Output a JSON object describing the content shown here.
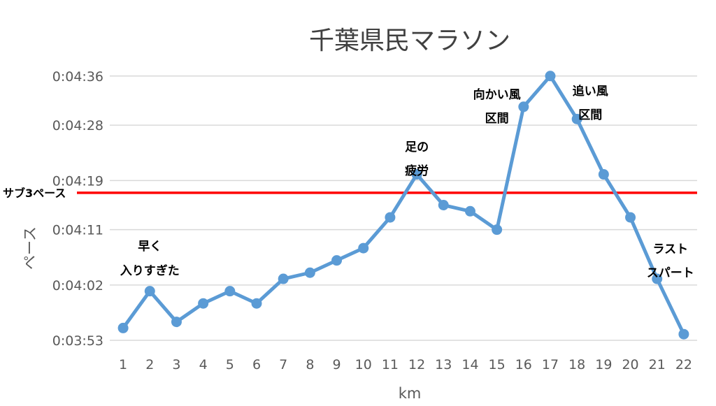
{
  "chart_data": {
    "type": "line",
    "title": "千葉県民マラソン",
    "xlabel": "km",
    "ylabel": "ペース",
    "x": [
      1,
      2,
      3,
      4,
      5,
      6,
      7,
      8,
      9,
      10,
      11,
      12,
      13,
      14,
      15,
      16,
      17,
      18,
      19,
      20,
      21,
      22
    ],
    "x_tick_labels": [
      "1",
      "2",
      "3",
      "4",
      "5",
      "6",
      "7",
      "8",
      "9",
      "10",
      "11",
      "12",
      "13",
      "14",
      "15",
      "16",
      "17",
      "18",
      "19",
      "20",
      "21",
      "22"
    ],
    "y_tick_labels": [
      "0:03:53",
      "0:04:02",
      "0:04:11",
      "0:04:19",
      "0:04:28",
      "0:04:36"
    ],
    "y_tick_values": [
      "0:03:53",
      "0:04:02",
      "0:04:11",
      "0:04:19",
      "0:04:28",
      "0:04:36"
    ],
    "ylim": [
      "0:03:53",
      "0:04:37"
    ],
    "grid": true,
    "series": [
      {
        "name": "",
        "color": "#5B9BD5",
        "values": [
          "0:03:55",
          "0:04:01",
          "0:03:56",
          "0:03:59",
          "0:04:01",
          "0:03:59",
          "0:04:03",
          "0:04:04",
          "0:04:06",
          "0:04:08",
          "0:04:13",
          "0:04:20",
          "0:04:15",
          "0:04:14",
          "0:04:11",
          "0:04:31",
          "0:04:36",
          "0:04:29",
          "0:04:20",
          "0:04:13",
          "0:04:03",
          "0:03:54"
        ]
      }
    ],
    "reference_line": {
      "label": "サブ3ペース",
      "value": "0:04:17",
      "color": "#FF0000"
    },
    "annotations": [
      {
        "lines": [
          "早く",
          "入りすぎた"
        ],
        "x": 2
      },
      {
        "lines": [
          "足の",
          "疲労"
        ],
        "x": 12
      },
      {
        "lines": [
          "向かい風",
          "区間"
        ],
        "x": 15
      },
      {
        "lines": [
          "追い風",
          "区間"
        ],
        "x": 18.5
      },
      {
        "lines": [
          "ラスト",
          "スパート"
        ],
        "x": 21.5
      }
    ]
  }
}
